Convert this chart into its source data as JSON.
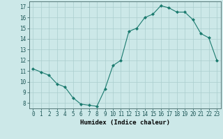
{
  "x": [
    0,
    1,
    2,
    3,
    4,
    5,
    6,
    7,
    8,
    9,
    10,
    11,
    12,
    13,
    14,
    15,
    16,
    17,
    18,
    19,
    20,
    21,
    22,
    23
  ],
  "y": [
    11.2,
    10.9,
    10.6,
    9.8,
    9.5,
    8.5,
    7.9,
    7.8,
    7.7,
    9.3,
    11.5,
    12.0,
    14.7,
    15.0,
    16.0,
    16.3,
    17.1,
    16.9,
    16.5,
    16.5,
    15.8,
    14.5,
    14.1,
    12.0
  ],
  "line_color": "#1a7a6e",
  "marker": "D",
  "marker_size": 2,
  "bg_color": "#cce8e8",
  "grid_color": "#aacece",
  "xlabel": "Humidex (Indice chaleur)",
  "ylabel_ticks": [
    8,
    9,
    10,
    11,
    12,
    13,
    14,
    15,
    16,
    17
  ],
  "ylim": [
    7.5,
    17.5
  ],
  "xlim": [
    -0.5,
    23.5
  ],
  "xticks": [
    0,
    1,
    2,
    3,
    4,
    5,
    6,
    7,
    8,
    9,
    10,
    11,
    12,
    13,
    14,
    15,
    16,
    17,
    18,
    19,
    20,
    21,
    22,
    23
  ],
  "label_fontsize": 6.5,
  "tick_fontsize": 5.5
}
